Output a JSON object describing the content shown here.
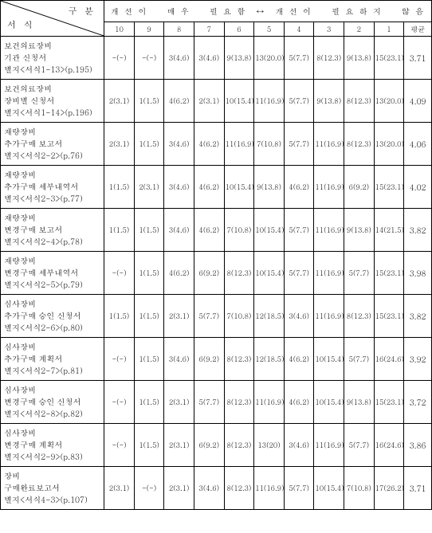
{
  "header": {
    "diag_top": "구 분",
    "diag_bottom": "서 식",
    "scale_label": "개 선 이　　매 우　　필 요 함　↔　개 선 이　　필 요 하 지　　않 음",
    "cols": [
      "10",
      "9",
      "8",
      "7",
      "6",
      "5",
      "4",
      "3",
      "2",
      "1"
    ],
    "avg_label": "평균"
  },
  "rows": [
    {
      "label": [
        "보건의료장비",
        "기관 신청서",
        "별지<서식1-13>(p.195)"
      ],
      "cells": [
        "-(-)",
        "-(-)",
        "3(4.6)",
        "3(4.6)",
        "9(13.8)",
        "13(20.0)",
        "5(7.7)",
        "8(12.3)",
        "9(13.8)",
        "15(23.1)"
      ],
      "avg": "3.71"
    },
    {
      "label": [
        "보건의료장비",
        "장비별 신청서",
        "별지<서식1-14>(p.196)"
      ],
      "cells": [
        "2(3.1)",
        "1(1.5)",
        "4(6.2)",
        "2(3.1)",
        "10(15.4)",
        "11(16.9)",
        "5(7.7)",
        "9(13.8)",
        "8(12.3)",
        "13(20.0)"
      ],
      "avg": "4.09"
    },
    {
      "label": [
        "재량장비",
        "추가구매 보고서",
        "별지<서식2-2>(p.76)"
      ],
      "cells": [
        "2(3.1)",
        "1(1.5)",
        "3(4.6)",
        "4(6.2)",
        "11(16.9)",
        "7(10.8)",
        "5(7.7)",
        "11(16.9)",
        "8(12.3)",
        "13(20.0)"
      ],
      "avg": "4.06"
    },
    {
      "label": [
        "재량장비",
        "추가구매 세부내역서",
        "별지<서식2-3>(p.77)"
      ],
      "cells": [
        "1(1.5)",
        "2(3.1)",
        "3(4.6)",
        "4(6.2)",
        "10(15.4)",
        "9(13.8)",
        "4(6.2)",
        "11(16.9)",
        "6(9.2)",
        "15(23.1)"
      ],
      "avg": "4.02"
    },
    {
      "label": [
        "재량장비",
        "변경구매 보고서",
        "별지<서식2-4>(p.78)"
      ],
      "cells": [
        "1(1.5)",
        "1(1.5)",
        "3(4.6)",
        "4(6.2)",
        "7(10.8)",
        "10(15.4)",
        "5(7.7)",
        "11(16.9)",
        "9(13.8)",
        "14(21.5)"
      ],
      "avg": "3.82"
    },
    {
      "label": [
        "재량장비",
        "변경구매 세부내역서",
        "별지<서식2-5>(p.79)"
      ],
      "cells": [
        "-(-)",
        "1(1.5)",
        "4(6.2)",
        "6(9.2)",
        "8(12.3)",
        "10(15.4)",
        "5(7.7)",
        "11(16.9)",
        "5(7.7)",
        "15(23.1)"
      ],
      "avg": "3.98"
    },
    {
      "label": [
        "심사장비",
        "추가구매 승인 신청서",
        "별지<서식2-6>(p.80)"
      ],
      "cells": [
        "1(1.5)",
        "1(1.5)",
        "2(3.1)",
        "5(7.7)",
        "7(10.8)",
        "12(18.5)",
        "3(4.6)",
        "11(16.9)",
        "8(12.3)",
        "15(23.1)"
      ],
      "avg": "3.82"
    },
    {
      "label": [
        "심사장비",
        "추가구매 계획서",
        "별지<서식2-7>(p.81)"
      ],
      "cells": [
        "-(-)",
        "1(1.5)",
        "3(4.6)",
        "6(9.2)",
        "8(12.3)",
        "12(18.5)",
        "4(6.2)",
        "10(15.4)",
        "5(7.7)",
        "16(24.6)"
      ],
      "avg": "3.92"
    },
    {
      "label": [
        "심사장비",
        "변경구매 승인 신청서",
        "별지<서식2-8>(p.82)"
      ],
      "cells": [
        "-(-)",
        "1(1.5)",
        "2(3.1)",
        "5(7.7)",
        "8(12.3)",
        "11(16.9)",
        "4(6.2)",
        "10(15.4)",
        "9(13.8)",
        "15(23.1)"
      ],
      "avg": "3.72"
    },
    {
      "label": [
        "심사장비",
        "변경구매 계획서",
        "별지<서식2-9>(p.83)"
      ],
      "cells": [
        "-(-)",
        "1(1.5)",
        "2(3.1)",
        "6(9.2)",
        "8(12.3)",
        "13(20)",
        "3(4.6)",
        "11(16.9)",
        "5(7.7)",
        "16(24.6)"
      ],
      "avg": "3.86"
    },
    {
      "label": [
        "장비",
        "구매완료보고서",
        "별지<서식4-3>(p.107)"
      ],
      "cells": [
        "2(3.1)",
        "-(-)",
        "2(3.1)",
        "3(4.6)",
        "8(12.3)",
        "11(16.9)",
        "5(7.7)",
        "10(15.4)",
        "7(10.8)",
        "17(26.2)"
      ],
      "avg": "3.71"
    }
  ],
  "layout": {
    "label_col_width": 128,
    "data_col_width": 37,
    "avg_col_width": 34
  }
}
